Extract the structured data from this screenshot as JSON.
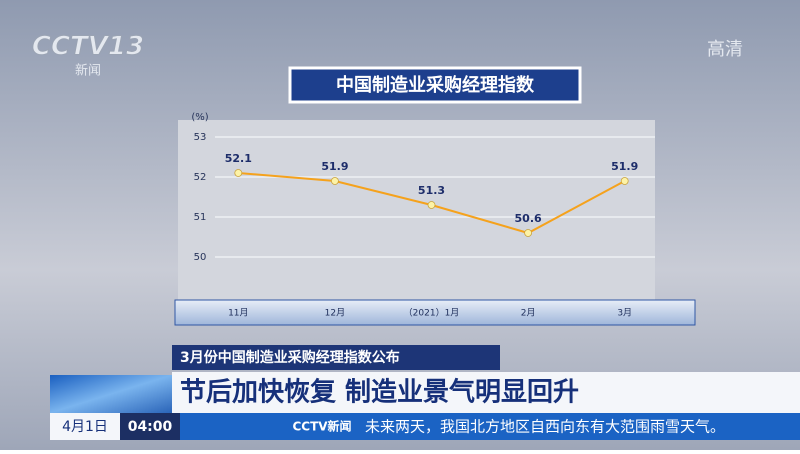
{
  "broadcast": {
    "logo": "CCTV13",
    "logo_sub": "新闻",
    "quality": "高清",
    "subheadline": "3月份中国制造业采购经理指数公布",
    "headline": "节后加快恢复 制造业景气明显回升",
    "date": "4月1日",
    "time": "04:00",
    "ticker_logo": "CCTV新闻",
    "ticker": "未来两天，我国北方地区自西向东有大范围雨雪天气。"
  },
  "chart_data": {
    "type": "line",
    "title": "中国制造业采购经理指数",
    "y_label": "(%)",
    "categories": [
      "11月",
      "12月",
      "（2021）1月",
      "2月",
      "3月"
    ],
    "values": [
      52.1,
      51.9,
      51.3,
      50.6,
      51.9
    ],
    "color": "#f5a21c",
    "marker_color": "#fdf3a6",
    "ylim": [
      49,
      53
    ],
    "yticks": [
      50,
      51,
      52,
      53
    ],
    "grid": true
  }
}
